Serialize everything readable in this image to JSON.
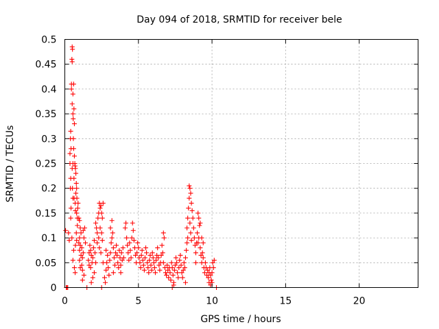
{
  "chart_data": {
    "type": "scatter",
    "title": "Day 094 of 2018, SRMTID for receiver bele",
    "xlabel": "GPS time / hours",
    "ylabel": "SRMTID / TECUs",
    "xlim": [
      0,
      24
    ],
    "ylim": [
      0,
      0.5
    ],
    "xticks": [
      0,
      5,
      10,
      15,
      20
    ],
    "yticks": [
      0,
      0.05,
      0.1,
      0.15,
      0.2,
      0.25,
      0.3,
      0.35,
      0.4,
      0.45,
      0.5
    ],
    "xtick_labels": [
      "0",
      "5",
      "10",
      "15",
      "20"
    ],
    "ytick_labels": [
      "0",
      "0.05",
      "0.1",
      "0.15",
      "0.2",
      "0.25",
      "0.3",
      "0.35",
      "0.4",
      "0.45",
      "0.5"
    ],
    "grid": true,
    "marker": "+",
    "color": "#ff0000",
    "series": [
      {
        "name": "SRMTID",
        "points": [
          [
            0.05,
            0.115
          ],
          [
            0.1,
            0.0
          ],
          [
            0.15,
            0.0
          ],
          [
            0.2,
            0.0
          ],
          [
            0.25,
            0.11
          ],
          [
            0.3,
            0.095
          ],
          [
            0.35,
            0.25
          ],
          [
            0.35,
            0.27
          ],
          [
            0.38,
            0.3
          ],
          [
            0.4,
            0.315
          ],
          [
            0.42,
            0.28
          ],
          [
            0.4,
            0.22
          ],
          [
            0.38,
            0.2
          ],
          [
            0.42,
            0.16
          ],
          [
            0.4,
            0.14
          ],
          [
            0.45,
            0.41
          ],
          [
            0.45,
            0.4
          ],
          [
            0.48,
            0.46
          ],
          [
            0.5,
            0.455
          ],
          [
            0.5,
            0.485
          ],
          [
            0.52,
            0.48
          ],
          [
            0.55,
            0.39
          ],
          [
            0.5,
            0.37
          ],
          [
            0.55,
            0.35
          ],
          [
            0.57,
            0.34
          ],
          [
            0.58,
            0.3
          ],
          [
            0.6,
            0.28
          ],
          [
            0.55,
            0.25
          ],
          [
            0.5,
            0.24
          ],
          [
            0.52,
            0.2
          ],
          [
            0.55,
            0.18
          ],
          [
            0.48,
            0.1
          ],
          [
            0.6,
            0.41
          ],
          [
            0.62,
            0.36
          ],
          [
            0.65,
            0.33
          ],
          [
            0.65,
            0.265
          ],
          [
            0.68,
            0.25
          ],
          [
            0.62,
            0.22
          ],
          [
            0.63,
            0.18
          ],
          [
            0.7,
            0.17
          ],
          [
            0.7,
            0.245
          ],
          [
            0.72,
            0.24
          ],
          [
            0.75,
            0.23
          ],
          [
            0.78,
            0.21
          ],
          [
            0.8,
            0.2
          ],
          [
            0.75,
            0.19
          ],
          [
            0.82,
            0.18
          ],
          [
            0.72,
            0.155
          ],
          [
            0.8,
            0.15
          ],
          [
            0.85,
            0.14
          ],
          [
            0.88,
            0.16
          ],
          [
            0.9,
            0.17
          ],
          [
            0.85,
            0.125
          ],
          [
            0.78,
            0.11
          ],
          [
            0.8,
            0.095
          ],
          [
            0.72,
            0.085
          ],
          [
            0.6,
            0.075
          ],
          [
            0.55,
            0.055
          ],
          [
            0.65,
            0.04
          ],
          [
            0.7,
            0.03
          ],
          [
            0.95,
            0.14
          ],
          [
            1.0,
            0.135
          ],
          [
            1.05,
            0.12
          ],
          [
            1.1,
            0.11
          ],
          [
            1.0,
            0.1
          ],
          [
            0.95,
            0.09
          ],
          [
            1.05,
            0.085
          ],
          [
            1.15,
            0.08
          ],
          [
            1.0,
            0.075
          ],
          [
            1.1,
            0.065
          ],
          [
            1.2,
            0.06
          ],
          [
            1.0,
            0.055
          ],
          [
            1.15,
            0.045
          ],
          [
            1.05,
            0.04
          ],
          [
            1.2,
            0.035
          ],
          [
            1.25,
            0.07
          ],
          [
            1.3,
            0.1
          ],
          [
            1.25,
            0.115
          ],
          [
            1.35,
            0.12
          ],
          [
            1.4,
            0.09
          ],
          [
            1.3,
            0.025
          ],
          [
            1.2,
            0.015
          ],
          [
            1.5,
            0.0
          ],
          [
            1.6,
            0.055
          ],
          [
            1.65,
            0.07
          ],
          [
            1.7,
            0.085
          ],
          [
            1.75,
            0.075
          ],
          [
            1.8,
            0.065
          ],
          [
            1.65,
            0.045
          ],
          [
            1.75,
            0.04
          ],
          [
            1.85,
            0.05
          ],
          [
            1.9,
            0.06
          ],
          [
            1.95,
            0.08
          ],
          [
            2.0,
            0.095
          ],
          [
            2.05,
            0.07
          ],
          [
            2.0,
            0.03
          ],
          [
            1.9,
            0.02
          ],
          [
            2.1,
            0.05
          ],
          [
            1.8,
            0.01
          ],
          [
            2.1,
            0.13
          ],
          [
            2.15,
            0.12
          ],
          [
            2.2,
            0.11
          ],
          [
            2.25,
            0.14
          ],
          [
            2.3,
            0.15
          ],
          [
            2.35,
            0.17
          ],
          [
            2.4,
            0.16
          ],
          [
            2.2,
            0.09
          ],
          [
            2.3,
            0.1
          ],
          [
            2.45,
            0.165
          ],
          [
            2.5,
            0.15
          ],
          [
            2.55,
            0.14
          ],
          [
            2.6,
            0.17
          ],
          [
            2.4,
            0.12
          ],
          [
            2.5,
            0.11
          ],
          [
            2.55,
            0.095
          ],
          [
            2.35,
            0.08
          ],
          [
            2.45,
            0.07
          ],
          [
            2.5,
            0.0
          ],
          [
            2.6,
            0.05
          ],
          [
            2.7,
            0.02
          ],
          [
            2.75,
            0.01
          ],
          [
            2.8,
            0.035
          ],
          [
            2.85,
            0.05
          ],
          [
            2.9,
            0.065
          ],
          [
            2.8,
            0.075
          ],
          [
            2.95,
            0.04
          ],
          [
            3.0,
            0.025
          ],
          [
            3.05,
            0.055
          ],
          [
            3.1,
            0.07
          ],
          [
            3.15,
            0.09
          ],
          [
            3.2,
            0.1
          ],
          [
            3.1,
            0.12
          ],
          [
            3.2,
            0.135
          ],
          [
            3.25,
            0.11
          ],
          [
            3.3,
            0.08
          ],
          [
            3.35,
            0.06
          ],
          [
            3.4,
            0.045
          ],
          [
            3.3,
            0.03
          ],
          [
            3.45,
            0.07
          ],
          [
            3.5,
            0.085
          ],
          [
            3.55,
            0.065
          ],
          [
            3.6,
            0.05
          ],
          [
            3.65,
            0.04
          ],
          [
            3.7,
            0.075
          ],
          [
            3.75,
            0.06
          ],
          [
            3.8,
            0.045
          ],
          [
            3.85,
            0.07
          ],
          [
            3.9,
            0.055
          ],
          [
            3.95,
            0.08
          ],
          [
            4.0,
            0.06
          ],
          [
            3.8,
            0.03
          ],
          [
            4.1,
            0.12
          ],
          [
            4.15,
            0.13
          ],
          [
            4.2,
            0.1
          ],
          [
            4.25,
            0.085
          ],
          [
            4.3,
            0.07
          ],
          [
            4.35,
            0.055
          ],
          [
            4.4,
            0.09
          ],
          [
            4.45,
            0.075
          ],
          [
            4.5,
            0.06
          ],
          [
            4.55,
            0.1
          ],
          [
            4.6,
            0.13
          ],
          [
            4.65,
            0.115
          ],
          [
            4.7,
            0.095
          ],
          [
            4.75,
            0.08
          ],
          [
            4.8,
            0.065
          ],
          [
            4.85,
            0.05
          ],
          [
            4.9,
            0.07
          ],
          [
            4.95,
            0.09
          ],
          [
            5.0,
            0.08
          ],
          [
            5.05,
            0.06
          ],
          [
            5.1,
            0.05
          ],
          [
            5.15,
            0.04
          ],
          [
            5.2,
            0.065
          ],
          [
            5.25,
            0.075
          ],
          [
            5.3,
            0.055
          ],
          [
            5.35,
            0.045
          ],
          [
            5.4,
            0.035
          ],
          [
            5.45,
            0.06
          ],
          [
            5.5,
            0.08
          ],
          [
            5.55,
            0.07
          ],
          [
            5.6,
            0.05
          ],
          [
            5.65,
            0.04
          ],
          [
            5.7,
            0.03
          ],
          [
            5.75,
            0.055
          ],
          [
            5.8,
            0.065
          ],
          [
            5.85,
            0.045
          ],
          [
            5.9,
            0.035
          ],
          [
            5.95,
            0.07
          ],
          [
            6.0,
            0.06
          ],
          [
            6.05,
            0.05
          ],
          [
            6.1,
            0.04
          ],
          [
            6.15,
            0.03
          ],
          [
            6.2,
            0.055
          ],
          [
            6.25,
            0.065
          ],
          [
            6.3,
            0.08
          ],
          [
            6.35,
            0.06
          ],
          [
            6.4,
            0.045
          ],
          [
            6.45,
            0.035
          ],
          [
            6.5,
            0.05
          ],
          [
            6.55,
            0.065
          ],
          [
            6.6,
            0.085
          ],
          [
            6.65,
            0.07
          ],
          [
            6.7,
            0.11
          ],
          [
            6.75,
            0.1
          ],
          [
            6.7,
            0.05
          ],
          [
            6.8,
            0.04
          ],
          [
            6.85,
            0.03
          ],
          [
            6.9,
            0.025
          ],
          [
            6.95,
            0.045
          ],
          [
            7.0,
            0.035
          ],
          [
            7.05,
            0.02
          ],
          [
            7.1,
            0.04
          ],
          [
            7.15,
            0.03
          ],
          [
            7.2,
            0.015
          ],
          [
            7.25,
            0.05
          ],
          [
            7.3,
            0.04
          ],
          [
            7.35,
            0.025
          ],
          [
            7.4,
            0.01
          ],
          [
            7.45,
            0.035
          ],
          [
            7.5,
            0.045
          ],
          [
            7.55,
            0.06
          ],
          [
            7.6,
            0.05
          ],
          [
            7.65,
            0.03
          ],
          [
            7.7,
            0.02
          ],
          [
            7.75,
            0.04
          ],
          [
            7.8,
            0.055
          ],
          [
            7.85,
            0.065
          ],
          [
            7.9,
            0.045
          ],
          [
            7.95,
            0.03
          ],
          [
            8.0,
            0.02
          ],
          [
            8.05,
            0.035
          ],
          [
            8.1,
            0.05
          ],
          [
            8.15,
            0.04
          ],
          [
            8.2,
            0.06
          ],
          [
            8.25,
            0.075
          ],
          [
            8.3,
            0.09
          ],
          [
            8.35,
            0.1
          ],
          [
            8.2,
            0.01
          ],
          [
            7.3,
            0.0
          ],
          [
            7.4,
            0.005
          ],
          [
            8.3,
            0.12
          ],
          [
            8.35,
            0.14
          ],
          [
            8.4,
            0.16
          ],
          [
            8.45,
            0.18
          ],
          [
            8.5,
            0.2
          ],
          [
            8.45,
            0.205
          ],
          [
            8.55,
            0.19
          ],
          [
            8.6,
            0.17
          ],
          [
            8.65,
            0.155
          ],
          [
            8.5,
            0.13
          ],
          [
            8.55,
            0.11
          ],
          [
            8.6,
            0.095
          ],
          [
            8.7,
            0.14
          ],
          [
            8.75,
            0.12
          ],
          [
            8.8,
            0.1
          ],
          [
            8.85,
            0.085
          ],
          [
            8.9,
            0.07
          ],
          [
            8.95,
            0.09
          ],
          [
            9.0,
            0.11
          ],
          [
            9.05,
            0.15
          ],
          [
            9.1,
            0.14
          ],
          [
            9.15,
            0.125
          ],
          [
            9.2,
            0.13
          ],
          [
            9.1,
            0.1
          ],
          [
            9.2,
            0.08
          ],
          [
            9.25,
            0.065
          ],
          [
            9.3,
            0.05
          ],
          [
            9.35,
            0.07
          ],
          [
            9.4,
            0.06
          ],
          [
            9.45,
            0.04
          ],
          [
            9.5,
            0.03
          ],
          [
            9.55,
            0.05
          ],
          [
            9.6,
            0.04
          ],
          [
            9.65,
            0.025
          ],
          [
            9.7,
            0.035
          ],
          [
            9.75,
            0.02
          ],
          [
            9.8,
            0.03
          ],
          [
            9.85,
            0.04
          ],
          [
            9.9,
            0.025
          ],
          [
            9.95,
            0.015
          ],
          [
            10.0,
            0.03
          ],
          [
            10.05,
            0.05
          ],
          [
            10.1,
            0.04
          ],
          [
            10.15,
            0.055
          ],
          [
            9.8,
            0.01
          ],
          [
            9.9,
            0.005
          ],
          [
            10.0,
            0.01
          ],
          [
            9.05,
            0.09
          ],
          [
            8.9,
            0.05
          ],
          [
            9.3,
            0.1
          ],
          [
            9.4,
            0.09
          ],
          [
            10.3,
            0.0
          ]
        ]
      }
    ]
  }
}
